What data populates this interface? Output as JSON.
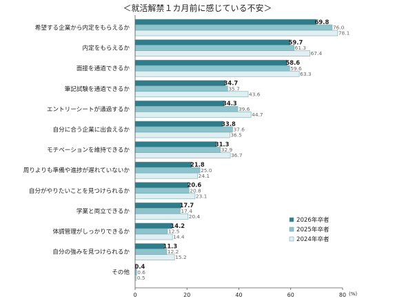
{
  "chart_data": {
    "type": "bar",
    "orientation": "horizontal",
    "title": "＜就活解禁１カ月前に感じている不安＞",
    "unit_label": "(%)",
    "xlim": [
      0,
      80
    ],
    "xticks": [
      "0",
      "20",
      "40",
      "60",
      "80"
    ],
    "categories": [
      "希望する企業から内定をもらえるか",
      "内定をもらえるか",
      "面接を通過できるか",
      "筆記試験を通過できるか",
      "エントリーシートが通過するか",
      "自分に合う企業に出会えるか",
      "モチベーションを維持できるか",
      "周りよりも準備や進捗が遅れていないか",
      "自分がやりたいことを見つけられるか",
      "学業と両立できるか",
      "体調管理がしっかりできるか",
      "自分の強みを見つけられるか",
      "その他"
    ],
    "series": [
      {
        "name": "2026年卒者",
        "color": "#2f7d8a",
        "values": [
          69.8,
          59.7,
          58.6,
          34.7,
          34.3,
          33.8,
          31.3,
          21.8,
          20.6,
          17.7,
          14.2,
          11.3,
          0.4
        ]
      },
      {
        "name": "2025年卒者",
        "color": "#8fc3cb",
        "values": [
          76.0,
          61.3,
          59.6,
          35.7,
          39.6,
          37.6,
          32.9,
          25.0,
          20.8,
          17.4,
          12.5,
          12.2,
          0.6
        ]
      },
      {
        "name": "2024年卒者",
        "color": "#dfeff2",
        "values": [
          78.1,
          67.4,
          63.3,
          43.6,
          44.7,
          36.5,
          36.7,
          24.1,
          23.1,
          20.4,
          14.4,
          15.2,
          0.5
        ]
      }
    ],
    "legend_position": "bottom-right",
    "grid": false
  }
}
